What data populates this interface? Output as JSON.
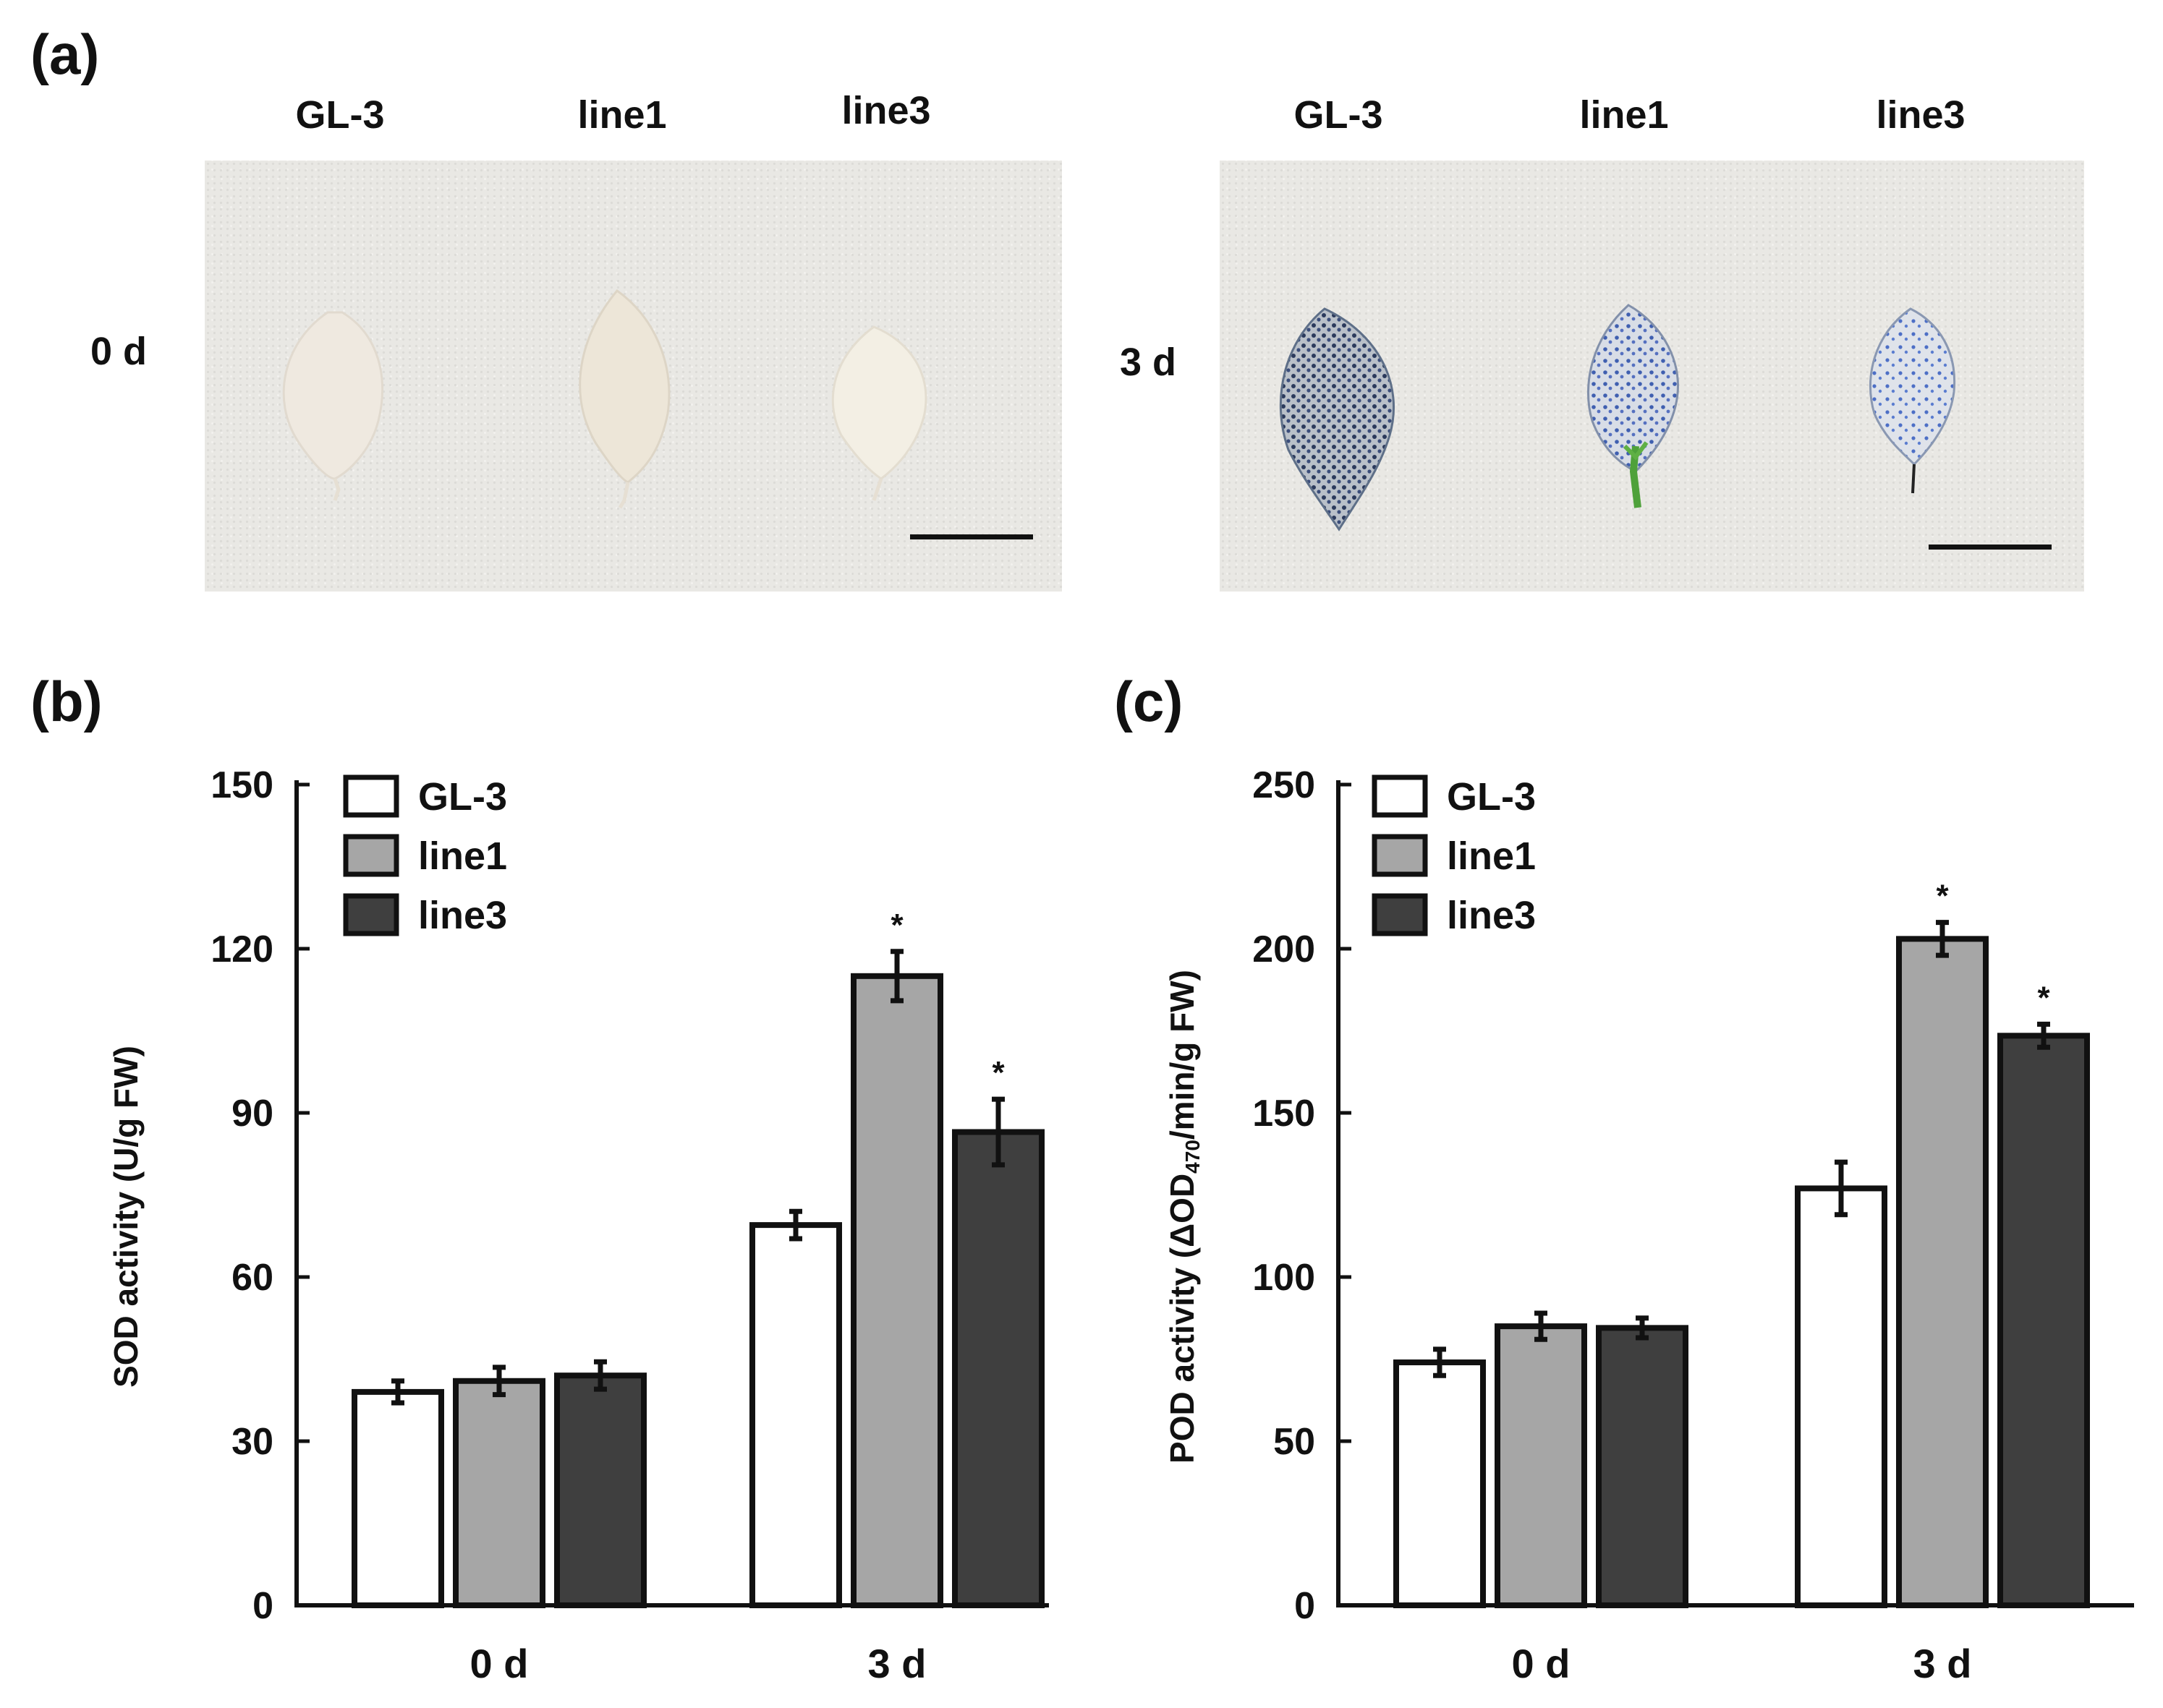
{
  "panels": {
    "a": {
      "letter": "(a)",
      "left_columns": [
        "GL-3",
        "line1",
        "line3"
      ],
      "right_columns": [
        "GL-3",
        "line1",
        "line3"
      ],
      "left_row_label": "0 d",
      "right_row_label": "3 d"
    },
    "b": {
      "letter": "(b)"
    },
    "c": {
      "letter": "(c)"
    }
  },
  "colors": {
    "GL-3": "#ffffff",
    "line1": "#a6a6a6",
    "line3": "#3f3f3f",
    "axis": "#111111"
  },
  "chart_data": [
    {
      "type": "bar",
      "title": "",
      "ylabel": "SOD activity (U/g FW)",
      "xlabel": "",
      "ylim": [
        0,
        150
      ],
      "yticks": [
        0,
        30,
        60,
        90,
        120,
        150
      ],
      "categories": [
        "0 d",
        "3 d"
      ],
      "legend": [
        "GL-3",
        "line1",
        "line3"
      ],
      "legend_position": "top-left",
      "series": [
        {
          "name": "GL-3",
          "values": [
            39,
            69.5
          ],
          "errors": [
            2,
            2.5
          ],
          "sig": [
            "",
            ""
          ]
        },
        {
          "name": "line1",
          "values": [
            41,
            115
          ],
          "errors": [
            2.5,
            4.5
          ],
          "sig": [
            "",
            "*"
          ]
        },
        {
          "name": "line3",
          "values": [
            42,
            86.5
          ],
          "errors": [
            2.5,
            6
          ],
          "sig": [
            "",
            "*"
          ]
        }
      ]
    },
    {
      "type": "bar",
      "title": "",
      "ylabel_main": "POD activity (ΔOD",
      "ylabel_sub": "470",
      "ylabel_tail": "/min/g FW)",
      "xlabel": "",
      "ylim": [
        0,
        250
      ],
      "yticks": [
        0,
        50,
        100,
        150,
        200,
        250
      ],
      "categories": [
        "0 d",
        "3 d"
      ],
      "legend": [
        "GL-3",
        "line1",
        "line3"
      ],
      "legend_position": "top-left",
      "series": [
        {
          "name": "GL-3",
          "values": [
            74,
            127
          ],
          "errors": [
            4,
            8
          ],
          "sig": [
            "",
            ""
          ]
        },
        {
          "name": "line1",
          "values": [
            85,
            203
          ],
          "errors": [
            4,
            5
          ],
          "sig": [
            "",
            "*"
          ]
        },
        {
          "name": "line3",
          "values": [
            84.5,
            173.5
          ],
          "errors": [
            3,
            3.5
          ],
          "sig": [
            "",
            "*"
          ]
        }
      ]
    }
  ]
}
